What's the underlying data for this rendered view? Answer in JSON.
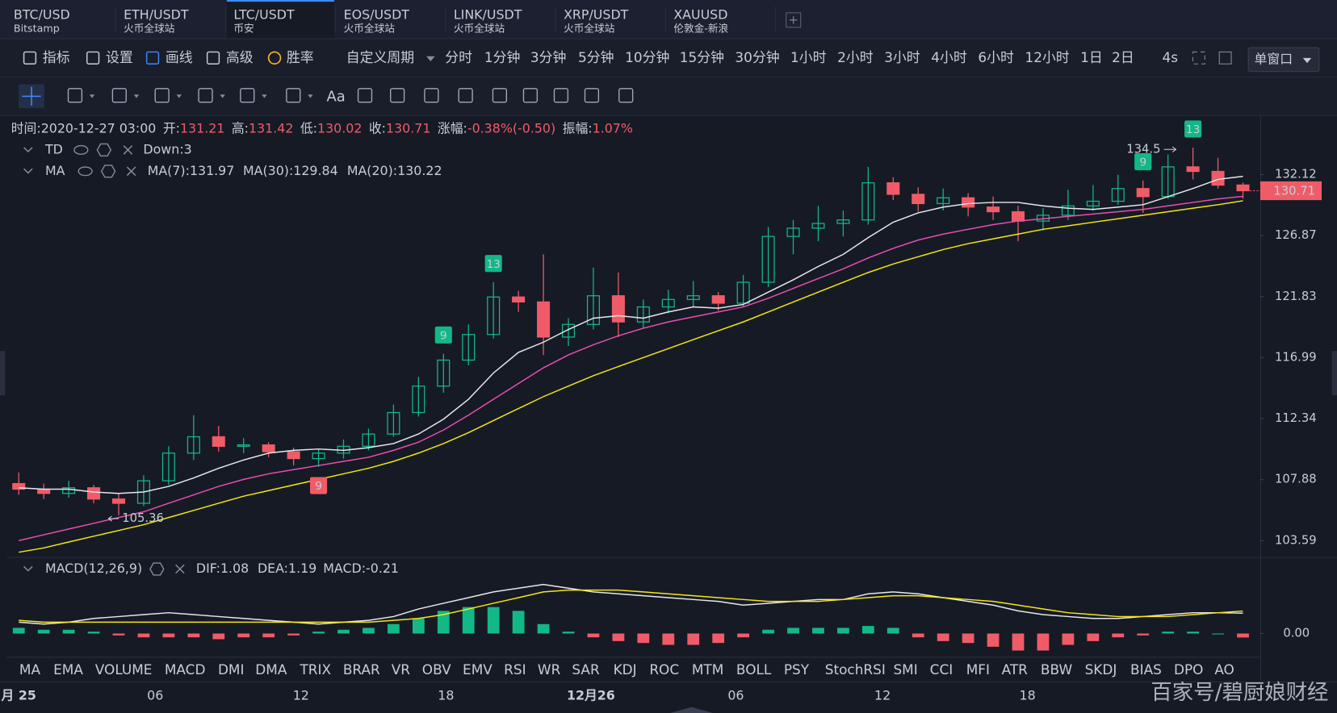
{
  "tabs": [
    {
      "symbol": "BTC/USD",
      "exchange": "Bitstamp"
    },
    {
      "symbol": "ETH/USDT",
      "exchange": "火币全球站"
    },
    {
      "symbol": "LTC/USDT",
      "exchange": "币安",
      "active": true
    },
    {
      "symbol": "EOS/USDT",
      "exchange": "火币全球站"
    },
    {
      "symbol": "LINK/USDT",
      "exchange": "火币全球站"
    },
    {
      "symbol": "XRP/USDT",
      "exchange": "火币全球站"
    },
    {
      "symbol": "XAUUSD",
      "exchange": "伦敦金-新浪"
    }
  ],
  "toolbar": [
    {
      "label": "指标"
    },
    {
      "label": "设置"
    },
    {
      "label": "画线",
      "color": "#3d8af7"
    },
    {
      "label": "高级"
    },
    {
      "label": "胜率",
      "color": "#f0b429"
    }
  ],
  "period_menu": "自定义周期",
  "periods": [
    {
      "label": "分时"
    },
    {
      "label": "1分钟"
    },
    {
      "label": "3分钟"
    },
    {
      "label": "5分钟"
    },
    {
      "label": "10分钟"
    },
    {
      "label": "15分钟"
    },
    {
      "label": "30分钟",
      "active": true
    },
    {
      "label": "1小时"
    },
    {
      "label": "2小时"
    },
    {
      "label": "3小时"
    },
    {
      "label": "4小时"
    },
    {
      "label": "6小时"
    },
    {
      "label": "12小时"
    },
    {
      "label": "1日"
    },
    {
      "label": "2日"
    }
  ],
  "refresh": "4s",
  "window_button": "单窗口",
  "text_tool": "Aa",
  "info_bar": [
    {
      "label": "时间:",
      "value": "2020-12-27 03:00",
      "color": "#c8ccd6"
    },
    {
      "label": "开:",
      "value": "131.21",
      "color": "#ef5c67"
    },
    {
      "label": "高:",
      "value": "131.42",
      "color": "#ef5c67"
    },
    {
      "label": "低:",
      "value": "130.02",
      "color": "#ef5c67"
    },
    {
      "label": "收:",
      "value": "130.71",
      "color": "#ef5c67"
    },
    {
      "label": "涨幅:",
      "value": "-0.38%(-0.50)",
      "color": "#ef5c67"
    },
    {
      "label": "振幅:",
      "value": "1.07%",
      "color": "#ef5c67"
    }
  ],
  "legends": {
    "td": {
      "name": "TD",
      "items": [
        {
          "text": "Down:3",
          "color": "#ef5c67"
        }
      ]
    },
    "ma": {
      "name": "MA",
      "items": [
        {
          "text": "MA(7):131.97",
          "color": "#e6e8ee"
        },
        {
          "text": "MA(30):129.84",
          "color": "#f5e614"
        },
        {
          "text": "MA(20):130.22",
          "color": "#e84fb0"
        }
      ]
    },
    "macd": {
      "name": "MACD(12,26,9)",
      "items": [
        {
          "text": "DIF:1.08",
          "color": "#e6e8ee"
        },
        {
          "text": "DEA:1.19",
          "color": "#f5e614"
        },
        {
          "text": "MACD:-0.21",
          "color": "#ef5c67"
        }
      ]
    }
  },
  "indicator_tabs": [
    {
      "label": "MA"
    },
    {
      "label": "EMA"
    },
    {
      "label": "VOLUME"
    },
    {
      "label": "MACD",
      "active": true
    },
    {
      "label": "DMI"
    },
    {
      "label": "DMA"
    },
    {
      "label": "TRIX"
    },
    {
      "label": "BRAR"
    },
    {
      "label": "VR"
    },
    {
      "label": "OBV"
    },
    {
      "label": "EMV"
    },
    {
      "label": "RSI"
    },
    {
      "label": "WR"
    },
    {
      "label": "SAR"
    },
    {
      "label": "KDJ"
    },
    {
      "label": "ROC"
    },
    {
      "label": "MTM"
    },
    {
      "label": "BOLL"
    },
    {
      "label": "PSY"
    },
    {
      "label": "StochRSI"
    },
    {
      "label": "SMI"
    },
    {
      "label": "CCI"
    },
    {
      "label": "MFI"
    },
    {
      "label": "ATR"
    },
    {
      "label": "BBW"
    },
    {
      "label": "SKDJ"
    },
    {
      "label": "BIAS"
    },
    {
      "label": "DPO"
    },
    {
      "label": "AO"
    }
  ],
  "x_labels": [
    {
      "text": "月 25",
      "bold": true
    },
    {
      "text": "06"
    },
    {
      "text": "12"
    },
    {
      "text": "18"
    },
    {
      "text": "12月26",
      "bold": true
    },
    {
      "text": "06"
    },
    {
      "text": "12"
    },
    {
      "text": "18"
    }
  ],
  "watermark": "百家号/碧厨娘财经",
  "chart_data": [
    {
      "type": "candlestick",
      "log": true,
      "grid": false,
      "up_color": "#12b886",
      "down_color": "#ef5c67",
      "ylim": [
        102.47,
        137.3
      ],
      "yticks": [
        103.59,
        107.88,
        112.34,
        116.99,
        121.83,
        126.87,
        132.12
      ],
      "candles": [
        [
          107.6,
          108.4,
          106.8,
          107.2
        ],
        [
          107.2,
          107.6,
          106.5,
          106.9
        ],
        [
          106.9,
          107.8,
          106.6,
          107.3
        ],
        [
          107.3,
          107.5,
          106.2,
          106.5
        ],
        [
          106.5,
          106.9,
          105.36,
          106.2
        ],
        [
          106.2,
          108.2,
          106.0,
          107.8
        ],
        [
          107.8,
          110.3,
          107.5,
          109.8
        ],
        [
          109.8,
          112.6,
          109.3,
          111.0
        ],
        [
          111.0,
          111.8,
          109.9,
          110.3
        ],
        [
          110.3,
          110.9,
          109.8,
          110.4
        ],
        [
          110.4,
          110.6,
          109.5,
          109.9
        ],
        [
          109.9,
          110.2,
          108.9,
          109.4
        ],
        [
          109.4,
          110.1,
          108.8,
          109.8
        ],
        [
          109.8,
          110.8,
          109.4,
          110.3
        ],
        [
          110.3,
          111.6,
          110.0,
          111.2
        ],
        [
          111.2,
          113.4,
          111.0,
          112.8
        ],
        [
          112.8,
          115.5,
          112.5,
          114.8
        ],
        [
          114.8,
          117.3,
          114.3,
          116.8
        ],
        [
          116.8,
          119.6,
          116.4,
          118.8
        ],
        [
          118.8,
          123.0,
          118.5,
          121.8
        ],
        [
          121.8,
          122.3,
          120.6,
          121.4
        ],
        [
          121.4,
          125.3,
          117.2,
          118.6
        ],
        [
          118.6,
          120.1,
          117.9,
          119.6
        ],
        [
          119.6,
          124.2,
          119.2,
          121.9
        ],
        [
          121.9,
          123.8,
          118.6,
          119.8
        ],
        [
          119.8,
          121.6,
          119.3,
          121.0
        ],
        [
          121.0,
          122.4,
          120.5,
          121.6
        ],
        [
          121.6,
          123.1,
          121.0,
          121.9
        ],
        [
          121.9,
          122.2,
          120.7,
          121.3
        ],
        [
          121.3,
          123.6,
          121.0,
          123.0
        ],
        [
          123.0,
          127.6,
          122.6,
          126.8
        ],
        [
          126.8,
          128.2,
          125.3,
          127.5
        ],
        [
          127.5,
          129.4,
          126.4,
          127.9
        ],
        [
          127.9,
          129.0,
          126.8,
          128.2
        ],
        [
          128.2,
          132.8,
          127.8,
          131.4
        ],
        [
          131.4,
          131.9,
          129.9,
          130.4
        ],
        [
          130.4,
          131.0,
          128.9,
          129.6
        ],
        [
          129.6,
          130.9,
          129.0,
          130.1
        ],
        [
          130.1,
          130.5,
          128.5,
          129.3
        ],
        [
          129.3,
          130.2,
          128.2,
          128.9
        ],
        [
          128.9,
          129.4,
          126.4,
          128.1
        ],
        [
          128.1,
          129.2,
          127.3,
          128.6
        ],
        [
          128.6,
          130.8,
          128.2,
          129.4
        ],
        [
          129.4,
          131.2,
          129.0,
          129.8
        ],
        [
          129.8,
          132.1,
          129.5,
          130.9
        ],
        [
          130.9,
          131.6,
          128.8,
          130.2
        ],
        [
          130.2,
          133.9,
          130.0,
          132.8
        ],
        [
          132.8,
          134.5,
          131.7,
          132.4
        ],
        [
          132.4,
          133.6,
          130.9,
          131.2
        ],
        [
          131.21,
          131.42,
          130.02,
          130.71
        ]
      ],
      "series": [
        {
          "color": "#e6e8ee",
          "values": [
            107.3,
            107.2,
            107.2,
            107.0,
            106.9,
            107.0,
            107.4,
            108.0,
            108.7,
            109.3,
            109.8,
            110.0,
            110.1,
            110.0,
            110.2,
            110.5,
            111.2,
            112.3,
            113.8,
            115.8,
            117.4,
            118.2,
            119.2,
            120.1,
            120.3,
            120.1,
            120.6,
            121.0,
            120.9,
            121.2,
            122.2,
            123.2,
            124.3,
            125.3,
            126.7,
            128.0,
            128.8,
            129.3,
            129.6,
            129.7,
            129.7,
            129.4,
            129.2,
            129.1,
            129.3,
            129.5,
            130.2,
            130.9,
            131.7,
            131.97
          ]
        },
        {
          "color": "#e84fb0",
          "values": [
            103.6,
            104.0,
            104.4,
            104.8,
            105.2,
            105.6,
            106.2,
            106.8,
            107.4,
            107.9,
            108.3,
            108.6,
            108.9,
            109.2,
            109.5,
            110.0,
            110.6,
            111.5,
            112.6,
            113.8,
            115.0,
            116.2,
            117.2,
            118.0,
            118.7,
            119.3,
            119.8,
            120.2,
            120.6,
            121.0,
            121.7,
            122.5,
            123.3,
            124.1,
            125.0,
            125.8,
            126.5,
            127.0,
            127.4,
            127.8,
            128.1,
            128.3,
            128.5,
            128.7,
            128.9,
            129.1,
            129.4,
            129.7,
            130.0,
            130.22
          ]
        },
        {
          "color": "#f5e614",
          "values": [
            102.8,
            103.1,
            103.5,
            103.9,
            104.3,
            104.7,
            105.2,
            105.7,
            106.2,
            106.7,
            107.1,
            107.5,
            107.9,
            108.3,
            108.7,
            109.2,
            109.8,
            110.5,
            111.3,
            112.2,
            113.1,
            114.0,
            114.8,
            115.6,
            116.3,
            117.0,
            117.7,
            118.4,
            119.1,
            119.8,
            120.6,
            121.4,
            122.2,
            123.0,
            123.8,
            124.5,
            125.1,
            125.7,
            126.2,
            126.6,
            127.0,
            127.4,
            127.7,
            128.0,
            128.3,
            128.6,
            128.9,
            129.2,
            129.5,
            129.84
          ]
        }
      ],
      "td_up_color": "#12b886",
      "td_down_color": "#ef5c67",
      "td_up": [
        null,
        null,
        null,
        null,
        null,
        null,
        null,
        null,
        null,
        null,
        null,
        null,
        null,
        null,
        null,
        null,
        null,
        9,
        null,
        13,
        null,
        null,
        null,
        null,
        null,
        null,
        null,
        null,
        null,
        null,
        null,
        null,
        null,
        null,
        null,
        null,
        null,
        null,
        null,
        null,
        null,
        null,
        null,
        null,
        null,
        9,
        null,
        13,
        null,
        null
      ],
      "td_down": [
        null,
        null,
        null,
        null,
        null,
        null,
        null,
        null,
        null,
        null,
        null,
        null,
        9,
        null,
        null,
        null,
        null,
        null,
        null,
        null,
        null,
        null,
        null,
        null,
        null,
        null,
        null,
        null,
        null,
        null,
        null,
        null,
        null,
        null,
        null,
        null,
        null,
        null,
        null,
        null,
        null,
        null,
        null,
        null,
        null,
        null,
        null,
        null,
        null,
        null
      ],
      "high_label": 134.5,
      "low_label": 105.36
    },
    {
      "type": "macd",
      "ylim": [
        -1.23,
        4.0
      ],
      "yticks": [
        {
          "value": 0,
          "label": "0.00"
        }
      ],
      "up_color": "#12b886",
      "down_color": "#ef5c67",
      "hist": [
        0.3,
        0.2,
        0.2,
        0.1,
        -0.1,
        -0.2,
        -0.2,
        -0.2,
        -0.3,
        -0.2,
        -0.2,
        -0.1,
        0.1,
        0.2,
        0.3,
        0.5,
        0.8,
        1.2,
        1.4,
        1.4,
        1.2,
        0.5,
        0.1,
        -0.2,
        -0.4,
        -0.5,
        -0.6,
        -0.6,
        -0.5,
        -0.2,
        0.2,
        0.3,
        0.3,
        0.3,
        0.4,
        0.3,
        -0.2,
        -0.4,
        -0.5,
        -0.7,
        -0.9,
        -0.9,
        -0.6,
        -0.4,
        -0.2,
        -0.1,
        0.1,
        0.1,
        0.0,
        -0.21
      ],
      "series": [
        {
          "color": "#e6e8ee",
          "values": [
            0.6,
            0.5,
            0.6,
            0.8,
            0.9,
            1.0,
            1.1,
            1.0,
            0.9,
            0.8,
            0.7,
            0.6,
            0.5,
            0.6,
            0.7,
            0.9,
            1.3,
            1.6,
            1.9,
            2.2,
            2.4,
            2.6,
            2.4,
            2.2,
            2.1,
            2.0,
            1.9,
            1.8,
            1.7,
            1.5,
            1.6,
            1.7,
            1.8,
            1.8,
            2.1,
            2.2,
            2.1,
            1.9,
            1.7,
            1.5,
            1.2,
            1.0,
            0.9,
            0.8,
            0.8,
            0.9,
            1.0,
            1.1,
            1.1,
            1.08
          ]
        },
        {
          "color": "#f5e614",
          "values": [
            0.7,
            0.6,
            0.6,
            0.6,
            0.6,
            0.6,
            0.6,
            0.6,
            0.6,
            0.6,
            0.6,
            0.6,
            0.6,
            0.6,
            0.6,
            0.7,
            0.8,
            1.0,
            1.3,
            1.6,
            1.9,
            2.2,
            2.3,
            2.3,
            2.3,
            2.2,
            2.1,
            2.0,
            1.9,
            1.8,
            1.7,
            1.7,
            1.7,
            1.8,
            1.9,
            2.0,
            2.0,
            1.9,
            1.8,
            1.7,
            1.5,
            1.3,
            1.1,
            1.0,
            0.9,
            0.9,
            0.9,
            1.0,
            1.1,
            1.19
          ]
        }
      ]
    }
  ]
}
